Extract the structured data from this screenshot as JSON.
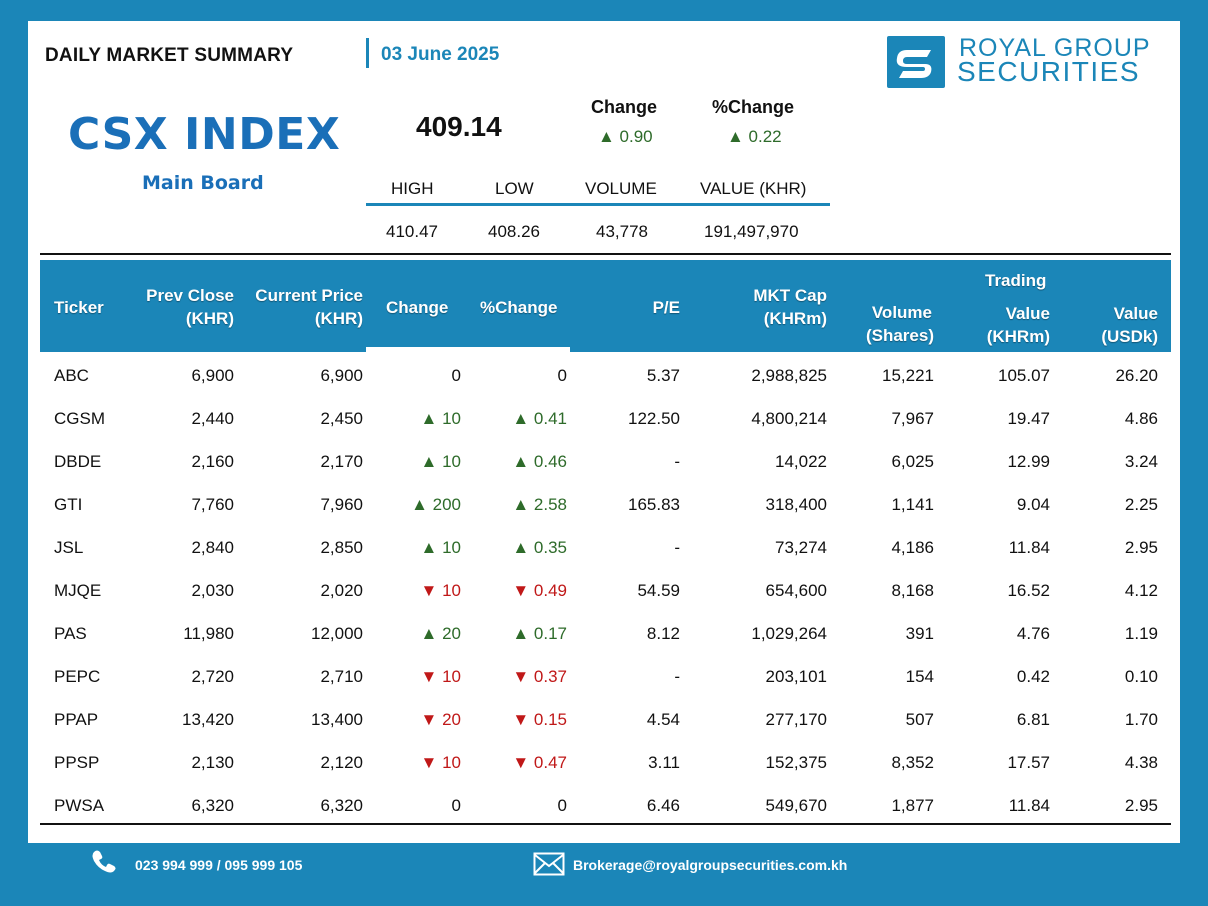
{
  "header": {
    "title": "DAILY MARKET SUMMARY",
    "date": "03 June 2025"
  },
  "brand": {
    "line1": "ROYAL GROUP",
    "line2": "SECURITIES",
    "accent": "#1b86b8"
  },
  "index": {
    "name": "CSX INDEX",
    "board": "Main Board",
    "value": "409.14",
    "change_label": "Change",
    "change_value": "▲ 0.90",
    "pct_change_label": "%Change",
    "pct_change_value": "▲ 0.22"
  },
  "stats": {
    "labels": [
      "HIGH",
      "LOW",
      "VOLUME",
      "VALUE (KHR)"
    ],
    "values": [
      "410.47",
      "408.26",
      "43,778",
      "191,497,970"
    ]
  },
  "table": {
    "headers": {
      "ticker": "Ticker",
      "prev_close_1": "Prev Close",
      "prev_close_2": "(KHR)",
      "current_price_1": "Current Price",
      "current_price_2": "(KHR)",
      "change": "Change",
      "pct_change": "%Change",
      "pe": "P/E",
      "mktcap_1": "MKT Cap",
      "mktcap_2": "(KHRm)",
      "volume_1": "Volume",
      "volume_2": "(Shares)",
      "trading": "Trading",
      "value_khr_1": "Value",
      "value_khr_2": "(KHRm)",
      "value_usd_1": "Value",
      "value_usd_2": "(USDk)"
    },
    "rows": [
      {
        "ticker": "ABC",
        "prev": "6,900",
        "cur": "6,900",
        "chg": "0",
        "pct": "0",
        "dir": "flat",
        "pe": "5.37",
        "mkt": "2,988,825",
        "vol": "15,221",
        "val_khr": "105.07",
        "val_usd": "26.20"
      },
      {
        "ticker": "CGSM",
        "prev": "2,440",
        "cur": "2,450",
        "chg": "▲ 10",
        "pct": "▲ 0.41",
        "dir": "up",
        "pe": "122.50",
        "mkt": "4,800,214",
        "vol": "7,967",
        "val_khr": "19.47",
        "val_usd": "4.86"
      },
      {
        "ticker": "DBDE",
        "prev": "2,160",
        "cur": "2,170",
        "chg": "▲ 10",
        "pct": "▲ 0.46",
        "dir": "up",
        "pe": "-",
        "mkt": "14,022",
        "vol": "6,025",
        "val_khr": "12.99",
        "val_usd": "3.24"
      },
      {
        "ticker": "GTI",
        "prev": "7,760",
        "cur": "7,960",
        "chg": "▲ 200",
        "pct": "▲ 2.58",
        "dir": "up",
        "pe": "165.83",
        "mkt": "318,400",
        "vol": "1,141",
        "val_khr": "9.04",
        "val_usd": "2.25"
      },
      {
        "ticker": "JSL",
        "prev": "2,840",
        "cur": "2,850",
        "chg": "▲ 10",
        "pct": "▲ 0.35",
        "dir": "up",
        "pe": "-",
        "mkt": "73,274",
        "vol": "4,186",
        "val_khr": "11.84",
        "val_usd": "2.95"
      },
      {
        "ticker": "MJQE",
        "prev": "2,030",
        "cur": "2,020",
        "chg": "▼ 10",
        "pct": "▼ 0.49",
        "dir": "down",
        "pe": "54.59",
        "mkt": "654,600",
        "vol": "8,168",
        "val_khr": "16.52",
        "val_usd": "4.12"
      },
      {
        "ticker": "PAS",
        "prev": "11,980",
        "cur": "12,000",
        "chg": "▲ 20",
        "pct": "▲ 0.17",
        "dir": "up",
        "pe": "8.12",
        "mkt": "1,029,264",
        "vol": "391",
        "val_khr": "4.76",
        "val_usd": "1.19"
      },
      {
        "ticker": "PEPC",
        "prev": "2,720",
        "cur": "2,710",
        "chg": "▼ 10",
        "pct": "▼ 0.37",
        "dir": "down",
        "pe": "-",
        "mkt": "203,101",
        "vol": "154",
        "val_khr": "0.42",
        "val_usd": "0.10"
      },
      {
        "ticker": "PPAP",
        "prev": "13,420",
        "cur": "13,400",
        "chg": "▼ 20",
        "pct": "▼ 0.15",
        "dir": "down",
        "pe": "4.54",
        "mkt": "277,170",
        "vol": "507",
        "val_khr": "6.81",
        "val_usd": "1.70"
      },
      {
        "ticker": "PPSP",
        "prev": "2,130",
        "cur": "2,120",
        "chg": "▼ 10",
        "pct": "▼ 0.47",
        "dir": "down",
        "pe": "3.11",
        "mkt": "152,375",
        "vol": "8,352",
        "val_khr": "17.57",
        "val_usd": "4.38"
      },
      {
        "ticker": "PWSA",
        "prev": "6,320",
        "cur": "6,320",
        "chg": "0",
        "pct": "0",
        "dir": "flat",
        "pe": "6.46",
        "mkt": "549,670",
        "vol": "1,877",
        "val_khr": "11.84",
        "val_usd": "2.95"
      }
    ]
  },
  "footer": {
    "phone": "023 994 999 / 095 999 105",
    "email": "Brokerage@royalgroupsecurities.com.kh"
  }
}
